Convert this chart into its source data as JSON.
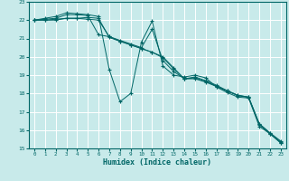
{
  "xlabel": "Humidex (Indice chaleur)",
  "xlim": [
    -0.5,
    23.5
  ],
  "ylim": [
    15,
    23
  ],
  "yticks": [
    15,
    16,
    17,
    18,
    19,
    20,
    21,
    22,
    23
  ],
  "xticks": [
    0,
    1,
    2,
    3,
    4,
    5,
    6,
    7,
    8,
    9,
    10,
    11,
    12,
    13,
    14,
    15,
    16,
    17,
    18,
    19,
    20,
    21,
    22,
    23
  ],
  "background_color": "#c8eaea",
  "grid_color": "#ffffff",
  "line_color": "#006666",
  "series": [
    [
      [
        0,
        22.0
      ],
      [
        1,
        22.1
      ],
      [
        2,
        22.2
      ],
      [
        3,
        22.4
      ],
      [
        4,
        22.35
      ],
      [
        5,
        22.3
      ],
      [
        6,
        22.2
      ],
      [
        7,
        19.3
      ],
      [
        8,
        17.55
      ],
      [
        9,
        18.0
      ],
      [
        10,
        20.8
      ],
      [
        11,
        21.95
      ],
      [
        12,
        19.5
      ],
      [
        13,
        19.0
      ],
      [
        14,
        18.9
      ],
      [
        15,
        19.0
      ],
      [
        16,
        18.85
      ],
      [
        17,
        18.35
      ],
      [
        18,
        18.05
      ],
      [
        19,
        17.8
      ],
      [
        20,
        17.75
      ],
      [
        21,
        16.2
      ],
      [
        22,
        15.8
      ],
      [
        23,
        15.3
      ]
    ],
    [
      [
        0,
        22.0
      ],
      [
        1,
        22.05
      ],
      [
        2,
        22.1
      ],
      [
        3,
        22.3
      ],
      [
        4,
        22.3
      ],
      [
        5,
        22.25
      ],
      [
        6,
        21.2
      ],
      [
        7,
        21.1
      ],
      [
        8,
        20.9
      ],
      [
        9,
        20.7
      ],
      [
        10,
        20.5
      ],
      [
        11,
        21.5
      ],
      [
        12,
        19.8
      ],
      [
        13,
        19.2
      ],
      [
        14,
        18.8
      ],
      [
        15,
        18.9
      ],
      [
        16,
        18.7
      ],
      [
        17,
        18.45
      ],
      [
        18,
        18.15
      ],
      [
        19,
        17.9
      ],
      [
        20,
        17.8
      ],
      [
        21,
        16.3
      ],
      [
        22,
        15.8
      ],
      [
        23,
        15.3
      ]
    ],
    [
      [
        0,
        22.0
      ],
      [
        1,
        22.0
      ],
      [
        2,
        22.05
      ],
      [
        3,
        22.1
      ],
      [
        4,
        22.1
      ],
      [
        5,
        22.05
      ],
      [
        6,
        22.0
      ],
      [
        7,
        21.1
      ],
      [
        8,
        20.85
      ],
      [
        9,
        20.65
      ],
      [
        10,
        20.45
      ],
      [
        11,
        20.25
      ],
      [
        12,
        20.0
      ],
      [
        13,
        19.4
      ],
      [
        14,
        18.8
      ],
      [
        15,
        18.85
      ],
      [
        16,
        18.65
      ],
      [
        17,
        18.4
      ],
      [
        18,
        18.15
      ],
      [
        19,
        17.9
      ],
      [
        20,
        17.8
      ],
      [
        21,
        16.35
      ],
      [
        22,
        15.85
      ],
      [
        23,
        15.4
      ]
    ],
    [
      [
        0,
        22.0
      ],
      [
        1,
        22.0
      ],
      [
        2,
        22.0
      ],
      [
        3,
        22.1
      ],
      [
        4,
        22.1
      ],
      [
        5,
        22.15
      ],
      [
        6,
        22.1
      ],
      [
        7,
        21.05
      ],
      [
        8,
        20.85
      ],
      [
        9,
        20.65
      ],
      [
        10,
        20.45
      ],
      [
        11,
        20.25
      ],
      [
        12,
        19.95
      ],
      [
        13,
        19.35
      ],
      [
        14,
        18.8
      ],
      [
        15,
        18.8
      ],
      [
        16,
        18.62
      ],
      [
        17,
        18.38
      ],
      [
        18,
        18.12
      ],
      [
        19,
        17.88
      ],
      [
        20,
        17.78
      ],
      [
        21,
        16.32
      ],
      [
        22,
        15.82
      ],
      [
        23,
        15.35
      ]
    ]
  ]
}
